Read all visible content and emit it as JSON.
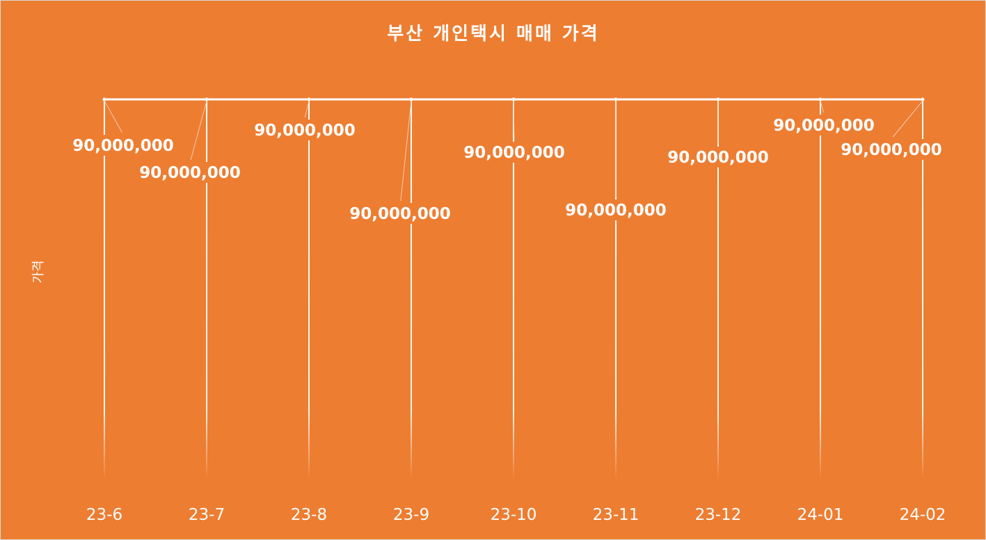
{
  "chart_data": {
    "type": "line",
    "title": "부산 개인택시 매매 가격",
    "xlabel": "",
    "ylabel": "가격",
    "categories": [
      "23-6",
      "23-7",
      "23-8",
      "23-9",
      "23-10",
      "23-11",
      "23-12",
      "24-01",
      "24-02"
    ],
    "series": [
      {
        "values": [
          90000000,
          90000000,
          90000000,
          90000000,
          90000000,
          90000000,
          90000000,
          90000000,
          90000000
        ],
        "data_labels": [
          "90,000,000",
          "90,000,000",
          "90,000,000",
          "90,000,000",
          "90,000,000",
          "90,000,000",
          "90,000,000",
          "90,000,000",
          "90,000,000"
        ]
      }
    ],
    "ylim": [
      0,
      90000000
    ],
    "grid": false,
    "legend": "none",
    "colors": {
      "background": "#ED7D31",
      "line": "#FFFFFF",
      "text": "#FFFFFF"
    }
  }
}
